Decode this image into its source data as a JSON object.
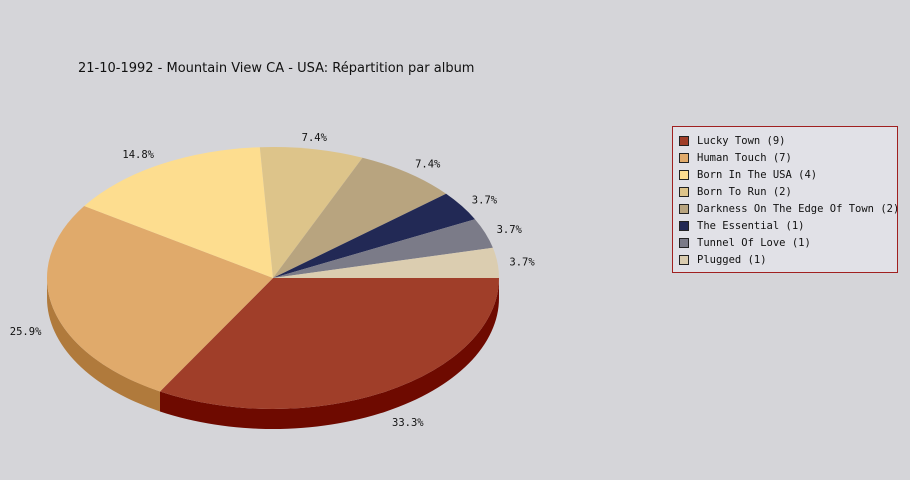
{
  "chart_data": {
    "type": "pie",
    "title": "21-10-1992 - Mountain View CA - USA:  Répartition par album",
    "series": [
      {
        "name": "Lucky Town",
        "count": 9,
        "legend": "Lucky Town (9)",
        "percent": 33.3,
        "label": "33.3%",
        "color": "#a03e29",
        "side_color": "#6e0a00"
      },
      {
        "name": "Human Touch",
        "count": 7,
        "legend": "Human Touch (7)",
        "percent": 25.9,
        "label": "25.9%",
        "color": "#e0aa6b",
        "side_color": "#b07a3c"
      },
      {
        "name": "Born In The USA",
        "count": 4,
        "legend": "Born In The USA (4)",
        "percent": 14.8,
        "label": "14.8%",
        "color": "#fddd8f",
        "side_color": "#c9a85c"
      },
      {
        "name": "Born To Run",
        "count": 2,
        "legend": "Born To Run (2)",
        "percent": 7.4,
        "label": "7.4%",
        "color": "#ddc48a",
        "side_color": "#a8905c"
      },
      {
        "name": "Darkness On The Edge Of Town",
        "count": 2,
        "legend": "Darkness On The Edge Of Town (2)",
        "percent": 7.4,
        "label": "7.4%",
        "color": "#b8a47f",
        "side_color": "#8a7855"
      },
      {
        "name": "The Essential",
        "count": 1,
        "legend": "The Essential (1)",
        "percent": 3.7,
        "label": "3.7%",
        "color": "#222955",
        "side_color": "#10143a"
      },
      {
        "name": "Tunnel Of Love",
        "count": 1,
        "legend": "Tunnel Of Love (1)",
        "percent": 3.7,
        "label": "3.7%",
        "color": "#7b7b88",
        "side_color": "#55555f"
      },
      {
        "name": "Plugged",
        "count": 1,
        "legend": "Plugged (1)",
        "percent": 3.7,
        "label": "3.7%",
        "color": "#dbcdb0",
        "side_color": "#ab9d80"
      }
    ],
    "legend_position": "right"
  }
}
